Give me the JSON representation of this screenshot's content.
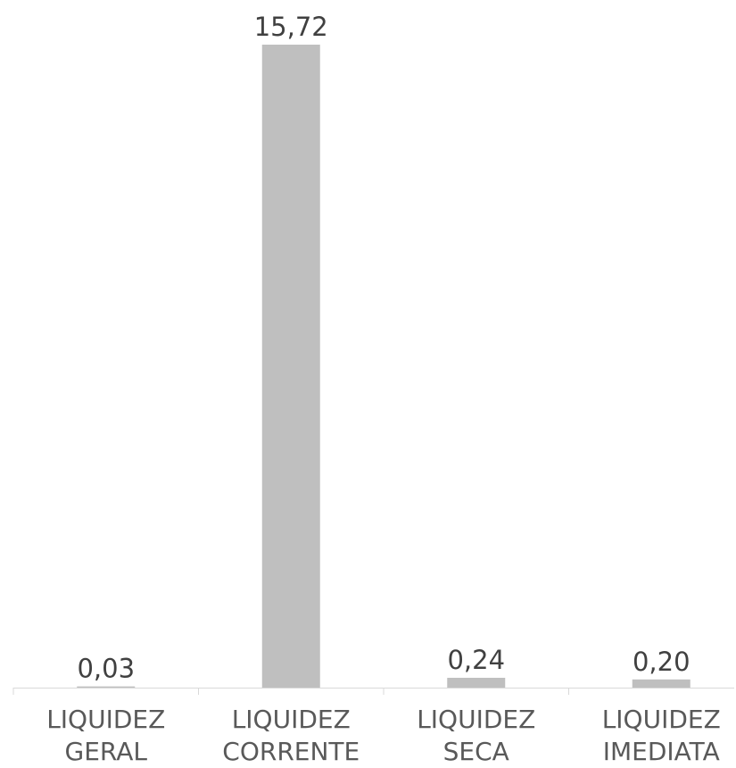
{
  "chart_data": {
    "type": "bar",
    "categories": [
      "LIQUIDEZ GERAL",
      "LIQUIDEZ CORRENTE",
      "LIQUIDEZ SECA",
      "LIQUIDEZ IMEDIATA"
    ],
    "values": [
      0.03,
      15.72,
      0.24,
      0.2
    ],
    "value_labels": [
      "0,03",
      "15,72",
      "0,24",
      "0,20"
    ],
    "color": "#bfbfbf"
  }
}
